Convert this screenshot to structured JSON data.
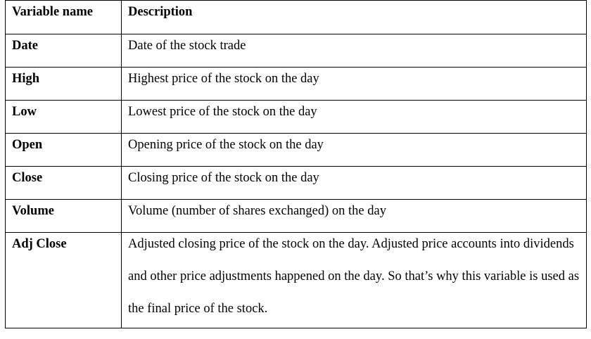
{
  "table": {
    "headers": {
      "name": "Variable name",
      "description": "Description"
    },
    "rows": [
      {
        "name": "Date",
        "description": "Date of the stock trade"
      },
      {
        "name": "High",
        "description": "Highest price of the stock on the day"
      },
      {
        "name": "Low",
        "description": "Lowest price of the stock on the day"
      },
      {
        "name": "Open",
        "description": "Opening price of the stock on the day"
      },
      {
        "name": "Close",
        "description": "Closing price of the stock on the day"
      },
      {
        "name": "Volume",
        "description": "Volume (number of shares exchanged) on the day"
      },
      {
        "name": "Adj Close",
        "description": "Adjusted closing price of the stock on the day. Adjusted price accounts into dividends and other price adjustments happened on the day. So that’s why this variable is used as the final price of the stock."
      }
    ]
  }
}
